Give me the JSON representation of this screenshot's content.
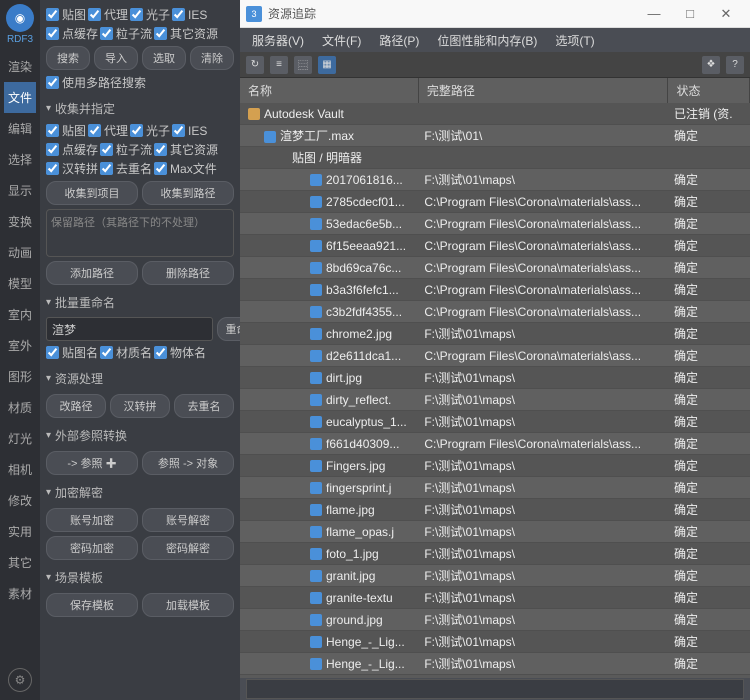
{
  "leftTabs": {
    "brand": "RDF3",
    "items": [
      "渲染",
      "文件",
      "编辑",
      "选择",
      "显示",
      "变换",
      "动画",
      "模型",
      "室内",
      "室外",
      "图形",
      "材质",
      "灯光",
      "相机",
      "修改",
      "实用",
      "其它",
      "素材"
    ],
    "activeIndex": 1
  },
  "mid": {
    "topChecks1": [
      [
        "贴图",
        true
      ],
      [
        "代理",
        true
      ],
      [
        "光子",
        true
      ],
      [
        "IES",
        true
      ]
    ],
    "topChecks2": [
      [
        "点缓存",
        true
      ],
      [
        "粒子流",
        true
      ],
      [
        "其它资源",
        true
      ]
    ],
    "btns1": [
      "搜索",
      "导入",
      "选取",
      "清除"
    ],
    "useMulti": [
      "使用多路径搜索",
      true
    ],
    "sect_collect": "收集并指定",
    "cc1": [
      [
        "贴图",
        true
      ],
      [
        "代理",
        true
      ],
      [
        "光子",
        true
      ],
      [
        "IES",
        true
      ]
    ],
    "cc2": [
      [
        "点缓存",
        true
      ],
      [
        "粒子流",
        true
      ],
      [
        "其它资源",
        true
      ]
    ],
    "cc3": [
      [
        "汉转拼",
        true
      ],
      [
        "去重名",
        true
      ],
      [
        "Max文件",
        true
      ]
    ],
    "btns2": [
      "收集到项目",
      "收集到路径"
    ],
    "keepPath": "保留路径（其路径下的不处理）",
    "btns3": [
      "添加路径",
      "删除路径"
    ],
    "sect_rename": "批量重命名",
    "renameInput": "渲梦",
    "renameBtn": "重命名",
    "rn": [
      [
        "贴图名",
        true
      ],
      [
        "材质名",
        true
      ],
      [
        "物体名",
        true
      ]
    ],
    "sect_asset": "资源处理",
    "btns4": [
      "改路径",
      "汉转拼",
      "去重名"
    ],
    "sect_xref": "外部参照转换",
    "btns5": [
      "-> 参照  ✚",
      "参照 -> 对象"
    ],
    "sect_enc": "加密解密",
    "btns6": [
      "账号加密",
      "账号解密"
    ],
    "btns7": [
      "密码加密",
      "密码解密"
    ],
    "sect_scene": "场景模板",
    "btns8": [
      "保存模板",
      "加载模板"
    ]
  },
  "win": {
    "title": "资源追踪",
    "menu": [
      "服务器(V)",
      "文件(F)",
      "路径(P)",
      "位图性能和内存(B)",
      "选项(T)"
    ]
  },
  "table": {
    "cols": [
      "名称",
      "完整路径",
      "状态"
    ],
    "colW": [
      "175px",
      "245px",
      "80px"
    ],
    "rows": [
      {
        "ind": 0,
        "ico": "folder",
        "name": "Autodesk Vault",
        "path": "",
        "status": "已注销 (资."
      },
      {
        "ind": 1,
        "ico": "file",
        "name": "渲梦工厂.max",
        "path": "F:\\测试\\01\\",
        "status": "确定"
      },
      {
        "ind": 2,
        "ico": "",
        "name": "贴图 / 明暗器",
        "path": "",
        "status": ""
      },
      {
        "ind": 3,
        "ico": "file",
        "name": "2017061816...",
        "path": "F:\\测试\\01\\maps\\",
        "status": "确定"
      },
      {
        "ind": 3,
        "ico": "file",
        "name": "2785cdecf01...",
        "path": "C:\\Program Files\\Corona\\materials\\ass...",
        "status": "确定"
      },
      {
        "ind": 3,
        "ico": "file",
        "name": "53edac6e5b...",
        "path": "C:\\Program Files\\Corona\\materials\\ass...",
        "status": "确定"
      },
      {
        "ind": 3,
        "ico": "file",
        "name": "6f15eeaa921...",
        "path": "C:\\Program Files\\Corona\\materials\\ass...",
        "status": "确定"
      },
      {
        "ind": 3,
        "ico": "file",
        "name": "8bd69ca76c...",
        "path": "C:\\Program Files\\Corona\\materials\\ass...",
        "status": "确定"
      },
      {
        "ind": 3,
        "ico": "file",
        "name": "b3a3f6fefc1...",
        "path": "C:\\Program Files\\Corona\\materials\\ass...",
        "status": "确定"
      },
      {
        "ind": 3,
        "ico": "file",
        "name": "c3b2fdf4355...",
        "path": "C:\\Program Files\\Corona\\materials\\ass...",
        "status": "确定"
      },
      {
        "ind": 3,
        "ico": "file",
        "name": "chrome2.jpg",
        "path": "F:\\测试\\01\\maps\\",
        "status": "确定"
      },
      {
        "ind": 3,
        "ico": "file",
        "name": "d2e611dca1...",
        "path": "C:\\Program Files\\Corona\\materials\\ass...",
        "status": "确定"
      },
      {
        "ind": 3,
        "ico": "file",
        "name": "dirt.jpg",
        "path": "F:\\测试\\01\\maps\\",
        "status": "确定"
      },
      {
        "ind": 3,
        "ico": "file",
        "name": "dirty_reflect.",
        "path": "F:\\测试\\01\\maps\\",
        "status": "确定"
      },
      {
        "ind": 3,
        "ico": "file",
        "name": "eucalyptus_1...",
        "path": "F:\\测试\\01\\maps\\",
        "status": "确定"
      },
      {
        "ind": 3,
        "ico": "file",
        "name": "f661d40309...",
        "path": "C:\\Program Files\\Corona\\materials\\ass...",
        "status": "确定"
      },
      {
        "ind": 3,
        "ico": "file",
        "name": "Fingers.jpg",
        "path": "F:\\测试\\01\\maps\\",
        "status": "确定"
      },
      {
        "ind": 3,
        "ico": "file",
        "name": "fingersprint.j",
        "path": "F:\\测试\\01\\maps\\",
        "status": "确定"
      },
      {
        "ind": 3,
        "ico": "file",
        "name": "flame.jpg",
        "path": "F:\\测试\\01\\maps\\",
        "status": "确定"
      },
      {
        "ind": 3,
        "ico": "file",
        "name": "flame_opas.j",
        "path": "F:\\测试\\01\\maps\\",
        "status": "确定"
      },
      {
        "ind": 3,
        "ico": "file",
        "name": "foto_1.jpg",
        "path": "F:\\测试\\01\\maps\\",
        "status": "确定"
      },
      {
        "ind": 3,
        "ico": "file",
        "name": "granit.jpg",
        "path": "F:\\测试\\01\\maps\\",
        "status": "确定"
      },
      {
        "ind": 3,
        "ico": "file",
        "name": "granite-textu",
        "path": "F:\\测试\\01\\maps\\",
        "status": "确定"
      },
      {
        "ind": 3,
        "ico": "file",
        "name": "ground.jpg",
        "path": "F:\\测试\\01\\maps\\",
        "status": "确定"
      },
      {
        "ind": 3,
        "ico": "file",
        "name": "Henge_-_Lig...",
        "path": "F:\\测试\\01\\maps\\",
        "status": "确定"
      },
      {
        "ind": 3,
        "ico": "file",
        "name": "Henge_-_Lig...",
        "path": "F:\\测试\\01\\maps\\",
        "status": "确定"
      }
    ]
  }
}
